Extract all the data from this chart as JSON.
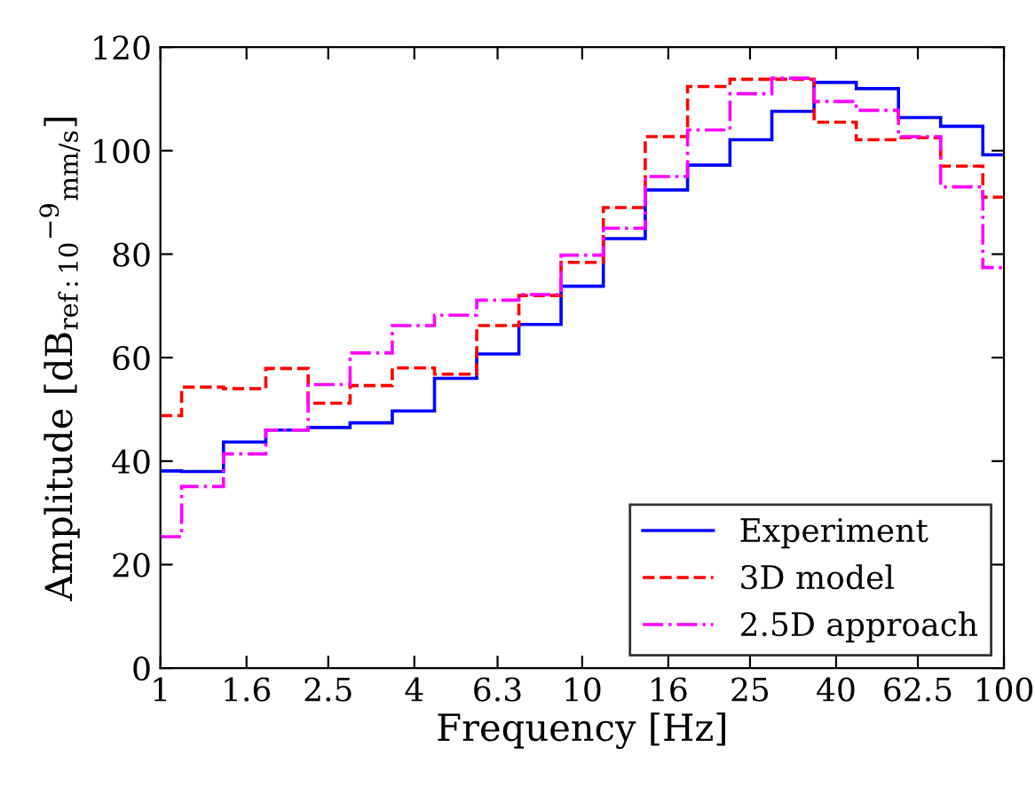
{
  "chart_data": {
    "type": "step",
    "xlabel": "Frequency [Hz]",
    "ylabel": "Amplitude [dB$_{ref:10}$$^{−9}$$_{mm/s}$]",
    "log": "x",
    "x": [
      1,
      1.26,
      1.58,
      2,
      2.51,
      3.16,
      3.98,
      5.01,
      6.31,
      7.94,
      10,
      12.6,
      15.8,
      20,
      25.1,
      31.6,
      39.8,
      50.1,
      63.1,
      79.4,
      100
    ],
    "series": [
      {
        "name": "Experiment",
        "color": "#0000ff",
        "line_style": "solid",
        "values": [
          38.1,
          38,
          43.7,
          46,
          46.5,
          47.4,
          49.7,
          56,
          60.7,
          66.4,
          73.8,
          83,
          92.4,
          97.2,
          102.1,
          107.6,
          113.2,
          112,
          106.4,
          104.7,
          99.2
        ]
      },
      {
        "name": "3D model",
        "color": "#ff0000",
        "line_style": "dashed",
        "values": [
          48.8,
          54.3,
          54,
          57.9,
          51.2,
          54.6,
          58,
          56.8,
          66.2,
          72,
          78.4,
          89,
          102.7,
          112.4,
          113.8,
          113.8,
          105.5,
          102.1,
          102.5,
          97,
          91
        ]
      },
      {
        "name": "2.5D approach",
        "color": "#ff00ff",
        "line_style": "dashdot",
        "values": [
          25.4,
          35.1,
          41.4,
          46,
          54.8,
          60.9,
          66.2,
          68.2,
          71.1,
          72.2,
          79.8,
          85,
          95,
          104,
          111,
          114,
          109.5,
          107.8,
          102.7,
          93,
          77.4
        ]
      }
    ],
    "xlim": [
      1,
      100
    ],
    "ylim": [
      0,
      120
    ],
    "xticks": [
      1,
      1.6,
      2.5,
      4,
      6.3,
      10,
      16,
      25,
      40,
      62.5,
      100
    ],
    "yticks": [
      0,
      20,
      40,
      60,
      80,
      100,
      120
    ],
    "grid": false,
    "legend": "bottom right"
  }
}
